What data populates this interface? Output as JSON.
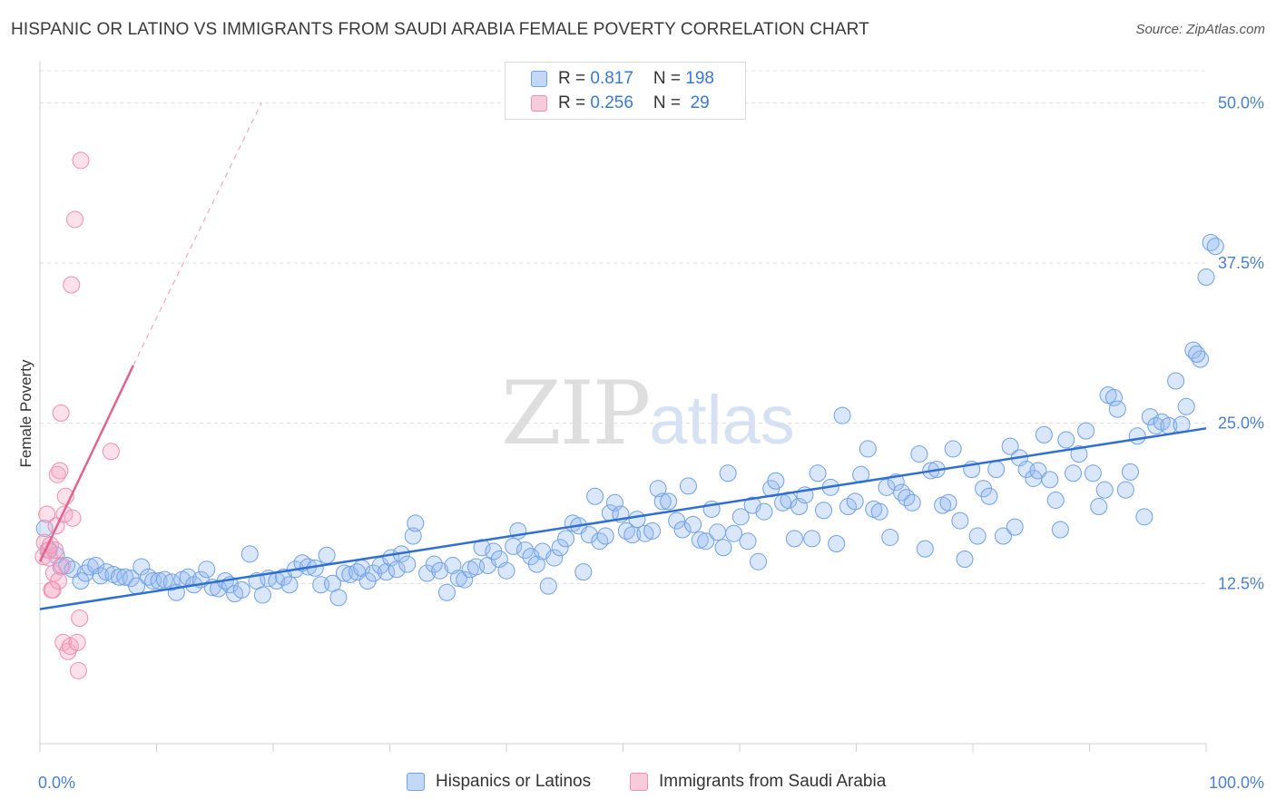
{
  "title": "HISPANIC OR LATINO VS IMMIGRANTS FROM SAUDI ARABIA FEMALE POVERTY CORRELATION CHART",
  "source": "Source: ZipAtlas.com",
  "watermark": {
    "zip": "ZIP",
    "atlas": "atlas"
  },
  "legend": {
    "rows": [
      {
        "r_label": "R = ",
        "r_value": "0.817",
        "n_label": "N = ",
        "n_value": "198",
        "color": "#6fa0e8"
      },
      {
        "r_label": "R = ",
        "r_value": "0.256",
        "n_label": "N = ",
        "n_value": " 29",
        "color": "#f08db0"
      }
    ]
  },
  "bottom_legend": [
    {
      "label": "Hispanics or Latinos",
      "color": "#6fa0e8"
    },
    {
      "label": "Immigrants from Saudi Arabia",
      "color": "#f08db0"
    }
  ],
  "chart_data": {
    "type": "scatter",
    "title": "HISPANIC OR LATINO VS IMMIGRANTS FROM SAUDI ARABIA FEMALE POVERTY CORRELATION CHART",
    "xlabel": "",
    "ylabel": "Female Poverty",
    "xlim": [
      0,
      100
    ],
    "ylim": [
      0,
      52.5
    ],
    "x_tick_labels": [
      "0.0%",
      "100.0%"
    ],
    "y_ticks": [
      12.5,
      25.0,
      37.5,
      50.0
    ],
    "y_tick_labels": [
      "12.5%",
      "25.0%",
      "37.5%",
      "50.0%"
    ],
    "grid": "horizontal dashed",
    "legend_position": "top-center",
    "series": [
      {
        "name": "Hispanics or Latinos",
        "color": "#6fa0e8",
        "trend": {
          "x": [
            0,
            100
          ],
          "y": [
            10.5,
            24.6
          ]
        },
        "points": [
          [
            0.4,
            16.8
          ],
          [
            0.8,
            15.1
          ],
          [
            1.4,
            14.7
          ],
          [
            1.8,
            13.8
          ],
          [
            2.3,
            13.9
          ],
          [
            2.8,
            13.6
          ],
          [
            3.5,
            12.7
          ],
          [
            3.9,
            13.3
          ],
          [
            4.3,
            13.8
          ],
          [
            4.8,
            13.9
          ],
          [
            5.2,
            13.1
          ],
          [
            5.7,
            13.4
          ],
          [
            6.3,
            13.2
          ],
          [
            6.8,
            13.0
          ],
          [
            7.3,
            13.0
          ],
          [
            7.8,
            12.9
          ],
          [
            8.3,
            12.3
          ],
          [
            8.7,
            13.8
          ],
          [
            9.3,
            13.0
          ],
          [
            9.7,
            12.7
          ],
          [
            10.2,
            12.7
          ],
          [
            10.7,
            12.8
          ],
          [
            11.3,
            12.6
          ],
          [
            11.7,
            11.8
          ],
          [
            12.2,
            12.8
          ],
          [
            12.7,
            13.0
          ],
          [
            13.2,
            12.4
          ],
          [
            13.8,
            12.8
          ],
          [
            14.3,
            13.6
          ],
          [
            14.8,
            12.2
          ],
          [
            15.3,
            12.1
          ],
          [
            15.9,
            12.7
          ],
          [
            16.3,
            12.4
          ],
          [
            16.7,
            11.7
          ],
          [
            17.3,
            12.0
          ],
          [
            18.0,
            14.8
          ],
          [
            18.6,
            12.7
          ],
          [
            19.1,
            11.6
          ],
          [
            19.6,
            12.9
          ],
          [
            20.3,
            12.7
          ],
          [
            20.9,
            13.0
          ],
          [
            21.4,
            12.4
          ],
          [
            21.9,
            13.6
          ],
          [
            22.5,
            14.1
          ],
          [
            23.0,
            13.8
          ],
          [
            23.6,
            13.7
          ],
          [
            24.1,
            12.4
          ],
          [
            24.6,
            14.7
          ],
          [
            25.1,
            12.5
          ],
          [
            25.6,
            11.4
          ],
          [
            26.1,
            13.3
          ],
          [
            26.6,
            13.2
          ],
          [
            27.2,
            13.4
          ],
          [
            27.6,
            13.7
          ],
          [
            28.1,
            12.7
          ],
          [
            28.6,
            13.3
          ],
          [
            29.2,
            13.9
          ],
          [
            29.7,
            13.4
          ],
          [
            30.1,
            14.5
          ],
          [
            30.6,
            13.6
          ],
          [
            31.0,
            14.8
          ],
          [
            31.5,
            14.0
          ],
          [
            32.0,
            16.2
          ],
          [
            32.2,
            17.2
          ],
          [
            33.2,
            13.3
          ],
          [
            33.8,
            14.0
          ],
          [
            34.3,
            13.5
          ],
          [
            34.9,
            11.8
          ],
          [
            35.4,
            13.9
          ],
          [
            35.9,
            12.9
          ],
          [
            36.4,
            12.8
          ],
          [
            36.9,
            13.6
          ],
          [
            37.4,
            13.8
          ],
          [
            37.9,
            15.3
          ],
          [
            38.4,
            13.9
          ],
          [
            38.9,
            15.0
          ],
          [
            39.4,
            14.4
          ],
          [
            40.0,
            13.5
          ],
          [
            40.6,
            15.4
          ],
          [
            41.0,
            16.6
          ],
          [
            41.6,
            15.1
          ],
          [
            42.1,
            14.6
          ],
          [
            42.6,
            14.0
          ],
          [
            43.1,
            15.0
          ],
          [
            43.6,
            12.3
          ],
          [
            44.1,
            14.5
          ],
          [
            44.6,
            15.3
          ],
          [
            45.1,
            16.0
          ],
          [
            45.7,
            17.2
          ],
          [
            46.2,
            17.0
          ],
          [
            46.6,
            13.4
          ],
          [
            47.1,
            16.3
          ],
          [
            47.6,
            19.3
          ],
          [
            48.0,
            15.8
          ],
          [
            48.5,
            16.2
          ],
          [
            48.9,
            18.0
          ],
          [
            49.3,
            18.8
          ],
          [
            49.8,
            17.9
          ],
          [
            50.3,
            16.6
          ],
          [
            50.8,
            16.3
          ],
          [
            51.2,
            17.5
          ],
          [
            51.9,
            16.4
          ],
          [
            52.5,
            16.6
          ],
          [
            53.0,
            19.9
          ],
          [
            53.4,
            18.9
          ],
          [
            53.9,
            18.9
          ],
          [
            54.6,
            17.4
          ],
          [
            55.1,
            16.7
          ],
          [
            55.6,
            20.1
          ],
          [
            56.0,
            17.1
          ],
          [
            56.6,
            15.9
          ],
          [
            57.1,
            15.8
          ],
          [
            57.6,
            18.3
          ],
          [
            58.1,
            16.5
          ],
          [
            58.6,
            15.3
          ],
          [
            59.0,
            21.1
          ],
          [
            59.5,
            16.4
          ],
          [
            60.1,
            17.7
          ],
          [
            60.7,
            15.8
          ],
          [
            61.1,
            18.6
          ],
          [
            61.6,
            14.2
          ],
          [
            62.1,
            18.1
          ],
          [
            62.7,
            19.9
          ],
          [
            63.1,
            20.5
          ],
          [
            63.7,
            18.8
          ],
          [
            64.2,
            19.0
          ],
          [
            64.7,
            16.0
          ],
          [
            65.1,
            18.5
          ],
          [
            65.6,
            19.4
          ],
          [
            66.2,
            16.0
          ],
          [
            66.7,
            21.1
          ],
          [
            67.2,
            18.2
          ],
          [
            67.8,
            20.0
          ],
          [
            68.3,
            15.6
          ],
          [
            68.8,
            25.6
          ],
          [
            69.3,
            18.5
          ],
          [
            69.9,
            18.9
          ],
          [
            70.4,
            21.0
          ],
          [
            71.0,
            23.0
          ],
          [
            71.5,
            18.3
          ],
          [
            72.0,
            18.1
          ],
          [
            72.6,
            20.0
          ],
          [
            72.9,
            16.1
          ],
          [
            73.4,
            20.4
          ],
          [
            73.9,
            19.6
          ],
          [
            74.3,
            19.2
          ],
          [
            74.8,
            18.8
          ],
          [
            75.4,
            22.6
          ],
          [
            75.9,
            15.2
          ],
          [
            76.4,
            21.3
          ],
          [
            76.9,
            21.4
          ],
          [
            77.4,
            18.6
          ],
          [
            77.9,
            18.8
          ],
          [
            78.3,
            23.0
          ],
          [
            78.9,
            17.4
          ],
          [
            79.3,
            14.4
          ],
          [
            79.9,
            21.4
          ],
          [
            80.4,
            16.2
          ],
          [
            80.9,
            19.9
          ],
          [
            81.4,
            19.3
          ],
          [
            82.0,
            21.4
          ],
          [
            82.6,
            16.2
          ],
          [
            83.2,
            23.2
          ],
          [
            83.6,
            16.9
          ],
          [
            84.0,
            22.3
          ],
          [
            84.6,
            21.4
          ],
          [
            85.2,
            20.7
          ],
          [
            85.6,
            21.3
          ],
          [
            86.1,
            24.1
          ],
          [
            86.6,
            20.6
          ],
          [
            87.1,
            19.0
          ],
          [
            87.5,
            16.7
          ],
          [
            88.0,
            23.7
          ],
          [
            88.6,
            21.1
          ],
          [
            89.1,
            22.6
          ],
          [
            89.7,
            24.4
          ],
          [
            90.3,
            21.1
          ],
          [
            90.8,
            18.5
          ],
          [
            91.3,
            19.8
          ],
          [
            91.6,
            27.2
          ],
          [
            92.1,
            27.0
          ],
          [
            92.4,
            26.1
          ],
          [
            93.1,
            19.8
          ],
          [
            93.5,
            21.2
          ],
          [
            94.1,
            24.0
          ],
          [
            94.7,
            17.7
          ],
          [
            95.2,
            25.5
          ],
          [
            95.7,
            24.8
          ],
          [
            96.2,
            25.1
          ],
          [
            96.8,
            24.8
          ],
          [
            97.4,
            28.3
          ],
          [
            97.9,
            24.9
          ],
          [
            98.3,
            26.3
          ],
          [
            98.9,
            30.7
          ],
          [
            99.5,
            30.0
          ],
          [
            100.0,
            36.4
          ],
          [
            100.4,
            39.1
          ],
          [
            100.8,
            38.8
          ],
          [
            99.2,
            30.4
          ]
        ]
      },
      {
        "name": "Immigrants from Saudi Arabia",
        "color": "#f08db0",
        "trend": {
          "x": [
            0,
            8
          ],
          "y": [
            14.2,
            29.5
          ]
        },
        "trend_extension": {
          "x": [
            8,
            19
          ],
          "y": [
            29.5,
            50.0
          ]
        },
        "points": [
          [
            0.3,
            14.6
          ],
          [
            0.4,
            15.7
          ],
          [
            0.6,
            17.9
          ],
          [
            0.7,
            15.1
          ],
          [
            0.8,
            14.5
          ],
          [
            0.9,
            15.5
          ],
          [
            1.0,
            12.0
          ],
          [
            1.1,
            12.0
          ],
          [
            1.2,
            13.3
          ],
          [
            1.3,
            15.1
          ],
          [
            1.4,
            17.0
          ],
          [
            1.5,
            21.0
          ],
          [
            1.6,
            12.7
          ],
          [
            1.7,
            21.3
          ],
          [
            1.8,
            25.8
          ],
          [
            1.9,
            13.9
          ],
          [
            2.0,
            7.9
          ],
          [
            2.1,
            17.9
          ],
          [
            2.2,
            19.3
          ],
          [
            2.4,
            7.2
          ],
          [
            2.6,
            7.6
          ],
          [
            2.7,
            35.8
          ],
          [
            2.8,
            17.6
          ],
          [
            3.0,
            40.9
          ],
          [
            3.2,
            7.9
          ],
          [
            3.3,
            5.7
          ],
          [
            3.4,
            9.8
          ],
          [
            3.5,
            45.5
          ],
          [
            6.1,
            22.8
          ]
        ]
      }
    ]
  }
}
